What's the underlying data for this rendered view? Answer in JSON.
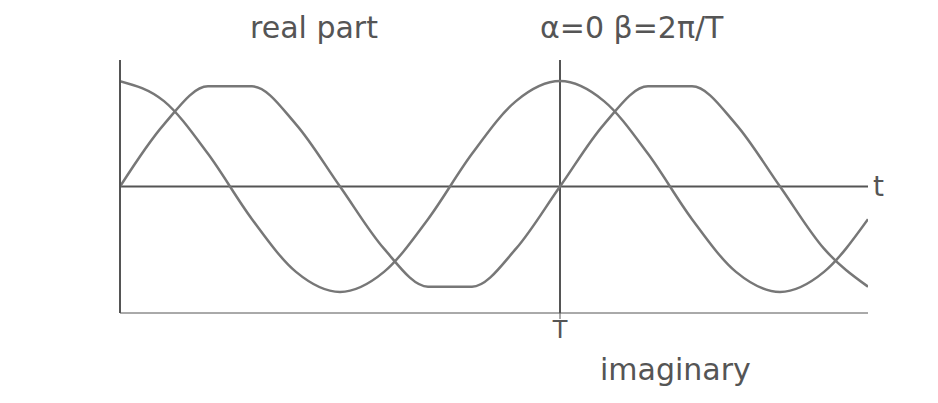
{
  "chart_data": {
    "type": "line",
    "title": "α=0 β=2π/T",
    "x_label": "t",
    "x": [
      0,
      0.1,
      0.2,
      0.3,
      0.4,
      0.5,
      0.6,
      0.7,
      0.8,
      0.9,
      1,
      1.1,
      1.2,
      1.3,
      1.4,
      1.5,
      1.6,
      1.7
    ],
    "series": [
      {
        "name": "real part",
        "color": "#777777",
        "values": [
          1,
          0.81,
          0.31,
          -0.31,
          -0.81,
          -1,
          -0.81,
          -0.31,
          0.31,
          0.81,
          1,
          0.81,
          0.31,
          -0.31,
          -0.81,
          -1,
          -0.81,
          -0.31
        ]
      },
      {
        "name": "imaginary",
        "color": "#777777",
        "values": [
          0,
          0.59,
          0.95,
          0.95,
          0.59,
          0,
          -0.59,
          -0.95,
          -0.95,
          -0.59,
          0,
          0.59,
          0.95,
          0.95,
          0.59,
          0,
          -0.59,
          -0.95
        ]
      }
    ],
    "xlim": [
      0,
      1.7
    ],
    "xticks": [
      {
        "value": 1,
        "label": "T"
      }
    ],
    "ylim": [
      -1.2,
      1.2
    ],
    "tick_labels": "x",
    "grid": false
  }
}
